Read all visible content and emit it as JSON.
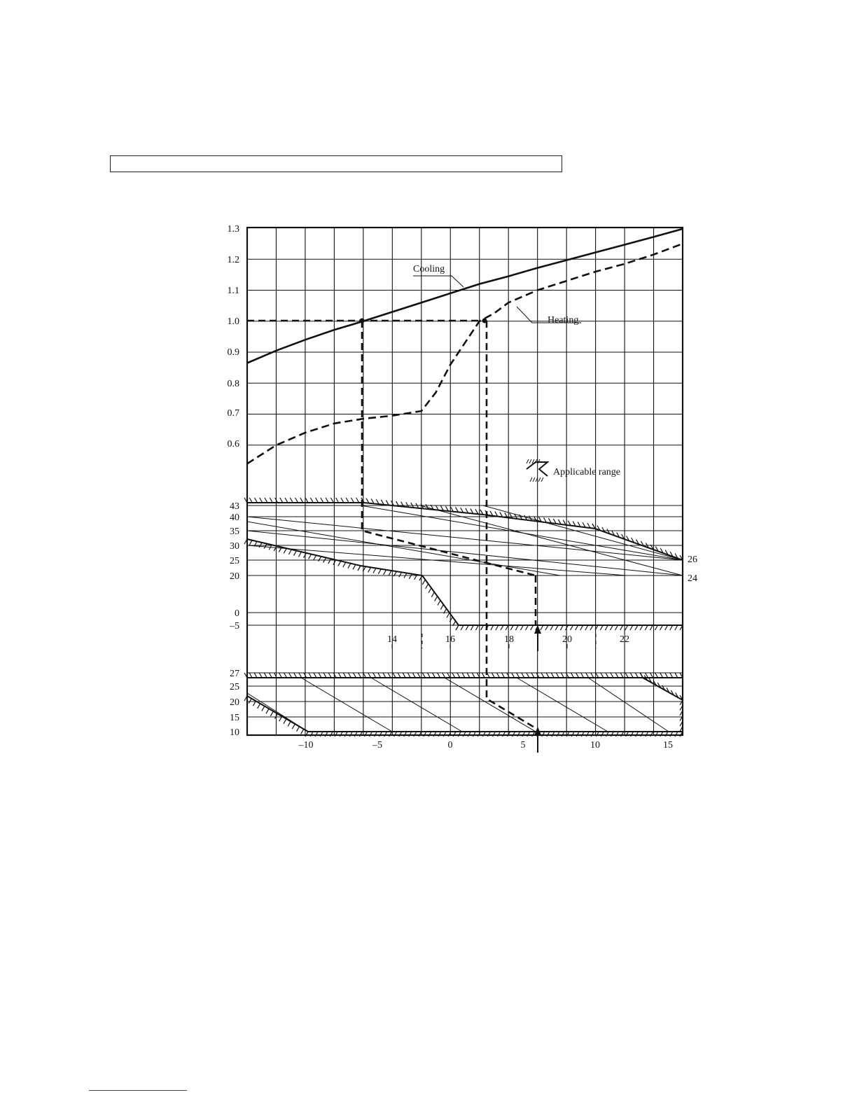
{
  "page": {
    "caption_box_text": ""
  },
  "chart_data": {
    "type": "line",
    "title": "",
    "upper_panel": {
      "y_ticks": [
        "1.3",
        "1.2",
        "1.1",
        "1.0",
        "0.9",
        "0.8",
        "0.7",
        "0.6"
      ],
      "ylim": [
        0.5,
        1.3
      ],
      "x_range": [
        -14,
        16
      ],
      "series": [
        {
          "name": "Cooling",
          "style": "solid",
          "x": [
            -14,
            -12,
            -10,
            -8,
            -6,
            -4,
            -2,
            0,
            2,
            4,
            6,
            8,
            10,
            12,
            14,
            16
          ],
          "y": [
            0.865,
            0.905,
            0.94,
            0.972,
            1.0,
            1.03,
            1.06,
            1.09,
            1.12,
            1.145,
            1.172,
            1.197,
            1.222,
            1.247,
            1.272,
            1.298
          ]
        },
        {
          "name": "Heating",
          "style": "dashed",
          "x": [
            -14,
            -12,
            -10,
            -8,
            -6,
            -4,
            -2,
            -1,
            0,
            1,
            2,
            3,
            4,
            6,
            8,
            10,
            12,
            14,
            16
          ],
          "y": [
            0.54,
            0.6,
            0.64,
            0.67,
            0.685,
            0.695,
            0.71,
            0.77,
            0.86,
            0.93,
            1.0,
            1.025,
            1.06,
            1.1,
            1.13,
            1.16,
            1.185,
            1.215,
            1.25
          ]
        }
      ]
    },
    "middle_panel": {
      "y_ticks": [
        "43",
        "40",
        "35",
        "30",
        "25",
        "20",
        "0",
        "–5"
      ],
      "inline_labels": [
        "14",
        "16",
        "18",
        "20",
        "22"
      ],
      "right_labels": [
        "26",
        "24"
      ]
    },
    "lower_panel": {
      "y_ticks": [
        "27",
        "25",
        "20",
        "15",
        "10"
      ],
      "x_ticks": [
        "–10",
        "–5",
        "0",
        "5",
        "10",
        "15"
      ]
    },
    "legend": {
      "label": "Applicable range"
    },
    "annotations": [
      "Cooling",
      "Heating"
    ]
  }
}
